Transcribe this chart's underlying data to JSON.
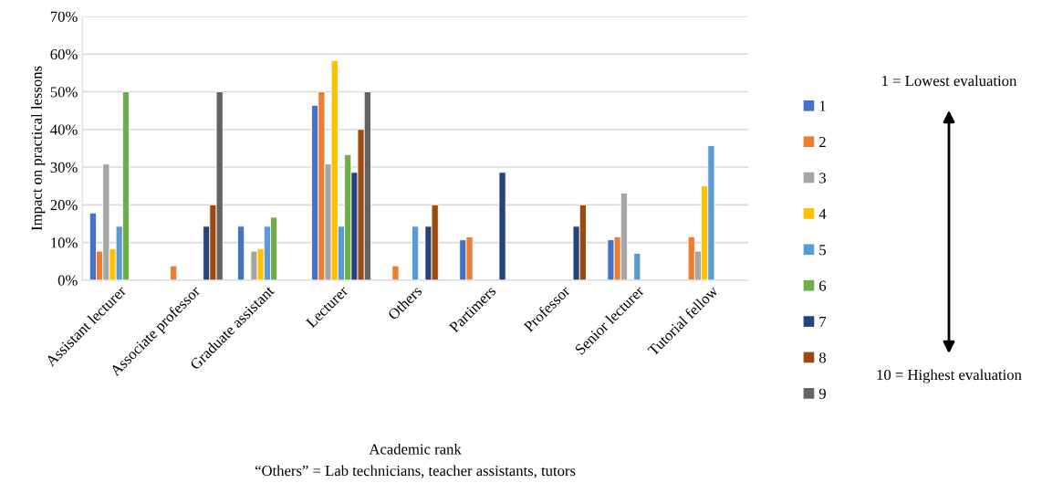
{
  "chart_data": {
    "type": "bar",
    "xlabel": "Academic rank",
    "ylabel": "Impact on practical lessons",
    "categories": [
      "Assistant lecturer",
      "Associate professor",
      "Graduate assistant",
      "Lecturer",
      "Others",
      "Partimers",
      "Professor",
      "Senior lecturer",
      "Tutorial fellow"
    ],
    "series": [
      {
        "name": "1",
        "color": "#4472c4",
        "values": [
          17.8,
          null,
          14.3,
          46.4,
          null,
          10.7,
          null,
          10.7,
          null
        ]
      },
      {
        "name": "2",
        "color": "#ed7d31",
        "values": [
          7.7,
          3.8,
          null,
          50,
          3.8,
          11.5,
          null,
          11.5,
          11.5
        ]
      },
      {
        "name": "3",
        "color": "#a5a5a5",
        "values": [
          30.8,
          null,
          7.7,
          30.8,
          null,
          null,
          null,
          23.1,
          7.7
        ]
      },
      {
        "name": "4",
        "color": "#ffc000",
        "values": [
          8.3,
          null,
          8.3,
          58.3,
          null,
          null,
          null,
          null,
          25
        ]
      },
      {
        "name": "5",
        "color": "#5b9bd5",
        "values": [
          14.3,
          null,
          14.3,
          14.3,
          14.3,
          null,
          null,
          7.1,
          35.7
        ]
      },
      {
        "name": "6",
        "color": "#70ad47",
        "values": [
          50,
          null,
          16.7,
          33.3,
          null,
          null,
          null,
          null,
          null
        ]
      },
      {
        "name": "7",
        "color": "#264478",
        "values": [
          null,
          14.3,
          null,
          28.6,
          14.3,
          28.6,
          14.3,
          null,
          null
        ]
      },
      {
        "name": "8",
        "color": "#9e480e",
        "values": [
          null,
          20,
          null,
          40,
          20,
          null,
          20,
          null,
          null
        ]
      },
      {
        "name": "9",
        "color": "#636363",
        "values": [
          null,
          50,
          null,
          50,
          null,
          null,
          null,
          null,
          null
        ]
      }
    ],
    "ylim": [
      0,
      70
    ],
    "yticks": [
      {
        "value": 0,
        "label": "0%"
      },
      {
        "value": 10,
        "label": "10%"
      },
      {
        "value": 20,
        "label": "20%"
      },
      {
        "value": 30,
        "label": "30%"
      },
      {
        "value": 40,
        "label": "40%"
      },
      {
        "value": 50,
        "label": "50%"
      },
      {
        "value": 60,
        "label": "60%"
      },
      {
        "value": 70,
        "label": "70%"
      }
    ],
    "grid": "y",
    "legend": "right",
    "annotations": [
      "1 = Lowest evaluation",
      "10 = Highest evaluation",
      "“Others” = Lab technicians, teacher assistants, tutors"
    ]
  }
}
